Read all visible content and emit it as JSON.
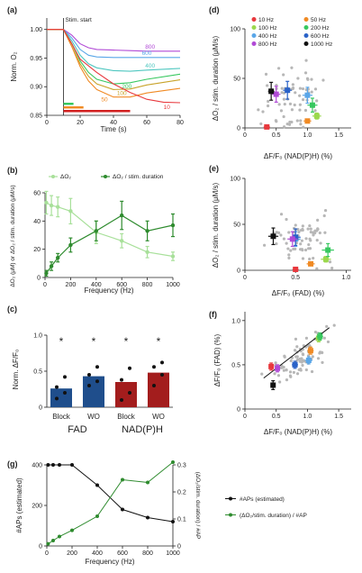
{
  "panels": [
    {
      "id": "a",
      "label": "(a)"
    },
    {
      "id": "b",
      "label": "(b)"
    },
    {
      "id": "c",
      "label": "(c)"
    },
    {
      "id": "d",
      "label": "(d)"
    },
    {
      "id": "e",
      "label": "(e)"
    },
    {
      "id": "f",
      "label": "(f)"
    },
    {
      "id": "g",
      "label": "(g)"
    }
  ],
  "colors": {
    "f10": "#e8383d",
    "f50": "#f08a24",
    "f100": "#9bd84d",
    "f200": "#37c85f",
    "f400": "#5aa6e8",
    "f600": "#2a62c8",
    "f800": "#b14ad6",
    "f1000": "#111111",
    "grey": "#b7b7b7",
    "greenDark": "#2e8b2e",
    "greenLight": "#a8e09a",
    "navy": "#1f4e8c",
    "darkred": "#a31d1d",
    "stimRed": "#d21f1f"
  },
  "chart_data": [
    {
      "panel": "a",
      "type": "line",
      "ylabel": "Norm. O₂",
      "xlabel": "Time (s)",
      "xlim": [
        0,
        80
      ],
      "ylim": [
        0.85,
        1.02
      ],
      "xticks": [
        "0",
        "20",
        "40",
        "60",
        "80"
      ],
      "yticks": [
        "0.85",
        "0.90",
        "0.95",
        "1.00"
      ],
      "annotation": "Stim. start",
      "stim_start": 10,
      "series": [
        {
          "name": "800",
          "color": "#b14ad6",
          "points": [
            [
              0,
              1.0
            ],
            [
              10,
              1.0
            ],
            [
              15,
              0.99
            ],
            [
              20,
              0.975
            ],
            [
              25,
              0.968
            ],
            [
              30,
              0.965
            ],
            [
              40,
              0.964
            ],
            [
              50,
              0.963
            ],
            [
              60,
              0.962
            ],
            [
              80,
              0.962
            ]
          ]
        },
        {
          "name": "600",
          "color": "#5aa6e8",
          "points": [
            [
              0,
              1.0
            ],
            [
              10,
              1.0
            ],
            [
              15,
              0.985
            ],
            [
              20,
              0.965
            ],
            [
              25,
              0.955
            ],
            [
              30,
              0.952
            ],
            [
              40,
              0.951
            ],
            [
              50,
              0.951
            ],
            [
              60,
              0.951
            ],
            [
              80,
              0.951
            ]
          ]
        },
        {
          "name": "400",
          "color": "#4fc7c0",
          "points": [
            [
              0,
              1.0
            ],
            [
              10,
              1.0
            ],
            [
              15,
              0.98
            ],
            [
              20,
              0.955
            ],
            [
              25,
              0.94
            ],
            [
              30,
              0.933
            ],
            [
              40,
              0.928
            ],
            [
              50,
              0.927
            ],
            [
              60,
              0.929
            ],
            [
              80,
              0.932
            ]
          ]
        },
        {
          "name": "200",
          "color": "#37c85f",
          "points": [
            [
              0,
              1.0
            ],
            [
              10,
              1.0
            ],
            [
              15,
              0.975
            ],
            [
              20,
              0.945
            ],
            [
              25,
              0.925
            ],
            [
              30,
              0.913
            ],
            [
              40,
              0.905
            ],
            [
              50,
              0.907
            ],
            [
              60,
              0.913
            ],
            [
              80,
              0.922
            ]
          ]
        },
        {
          "name": "100",
          "color": "#c8a32a",
          "points": [
            [
              0,
              1.0
            ],
            [
              10,
              1.0
            ],
            [
              15,
              0.97
            ],
            [
              20,
              0.94
            ],
            [
              25,
              0.918
            ],
            [
              30,
              0.905
            ],
            [
              40,
              0.895
            ],
            [
              50,
              0.896
            ],
            [
              60,
              0.903
            ],
            [
              80,
              0.912
            ]
          ]
        },
        {
          "name": "50",
          "color": "#f08a24",
          "points": [
            [
              0,
              1.0
            ],
            [
              10,
              1.0
            ],
            [
              15,
              0.97
            ],
            [
              20,
              0.935
            ],
            [
              25,
              0.91
            ],
            [
              30,
              0.895
            ],
            [
              40,
              0.882
            ],
            [
              50,
              0.882
            ],
            [
              60,
              0.889
            ],
            [
              80,
              0.897
            ]
          ]
        },
        {
          "name": "10",
          "color": "#e8383d",
          "points": [
            [
              0,
              1.0
            ],
            [
              10,
              1.0
            ],
            [
              15,
              0.975
            ],
            [
              20,
              0.948
            ],
            [
              30,
              0.925
            ],
            [
              40,
              0.905
            ],
            [
              50,
              0.89
            ],
            [
              60,
              0.878
            ],
            [
              70,
              0.873
            ],
            [
              80,
              0.872
            ]
          ]
        }
      ],
      "stim_bars": [
        {
          "color": "#37c85f",
          "start": 10,
          "end": 16
        },
        {
          "color": "#f08a24",
          "start": 10,
          "end": 22
        },
        {
          "color": "#d21f1f",
          "start": 10,
          "end": 50
        }
      ]
    },
    {
      "panel": "b",
      "type": "line",
      "xlabel": "Frequency (Hz)",
      "ylabel": "ΔO₂ (μM) or ΔO₂ / stim. duration (μM/s)",
      "xlim": [
        0,
        1000
      ],
      "ylim": [
        0,
        60
      ],
      "xticks": [
        "0",
        "200",
        "400",
        "600",
        "800",
        "1000"
      ],
      "yticks": [
        "0",
        "20",
        "40",
        "60"
      ],
      "series": [
        {
          "name": "ΔO₂",
          "color": "#a8e09a",
          "x": [
            10,
            50,
            100,
            200,
            400,
            600,
            800,
            1000
          ],
          "y": [
            53,
            51,
            50,
            47,
            32,
            26,
            18,
            15
          ],
          "err": [
            8,
            7,
            7,
            9,
            8,
            5,
            4,
            3
          ]
        },
        {
          "name": "ΔO₂ / stim. duration",
          "color": "#2e8b2e",
          "x": [
            10,
            50,
            100,
            200,
            400,
            600,
            800,
            1000
          ],
          "y": [
            3,
            8,
            14,
            23,
            33,
            44,
            33,
            37
          ],
          "err": [
            2,
            3,
            3,
            5,
            7,
            10,
            7,
            8
          ]
        }
      ]
    },
    {
      "panel": "c",
      "type": "bar",
      "ylabel": "Norm. ΔF/F₀",
      "ylim": [
        0,
        1.0
      ],
      "yticks": [
        "0",
        "0.5",
        "1.0"
      ],
      "categories": [
        "Block",
        "WO",
        "Block",
        "WO"
      ],
      "groups": [
        "FAD",
        "NAD(P)H"
      ],
      "values": [
        0.26,
        0.43,
        0.35,
        0.48
      ],
      "colors": [
        "#1f4e8c",
        "#1f4e8c",
        "#a31d1d",
        "#a31d1d"
      ],
      "points": [
        [
          0.12,
          0.2,
          0.28,
          0.42
        ],
        [
          0.3,
          0.36,
          0.45,
          0.56
        ],
        [
          0.1,
          0.2,
          0.38,
          0.54
        ],
        [
          0.3,
          0.45,
          0.56,
          0.62
        ]
      ],
      "sig": [
        "*",
        "*",
        "*",
        "*"
      ]
    },
    {
      "panel": "d",
      "type": "scatter",
      "xlabel": "ΔF/F₀ (NAD(P)H) (%)",
      "ylabel": "ΔO₂ / stim. duration (μM/s)",
      "xlim": [
        0,
        1.7
      ],
      "ylim": [
        0,
        100
      ],
      "xticks": [
        "0",
        "0.5",
        "1.0",
        "1.5"
      ],
      "yticks": [
        "0",
        "50",
        "100"
      ],
      "legend": [
        "10 Hz",
        "50 Hz",
        "100 Hz",
        "200 Hz",
        "400 Hz",
        "600 Hz",
        "800 Hz",
        "1000 Hz"
      ],
      "means": [
        {
          "f": "10 Hz",
          "x": 0.35,
          "y": 1,
          "ex": 0.05,
          "ey": 1
        },
        {
          "f": "50 Hz",
          "x": 1.0,
          "y": 7,
          "ex": 0.06,
          "ey": 2
        },
        {
          "f": "100 Hz",
          "x": 1.15,
          "y": 12,
          "ex": 0.07,
          "ey": 3
        },
        {
          "f": "200 Hz",
          "x": 1.08,
          "y": 23,
          "ex": 0.08,
          "ey": 7
        },
        {
          "f": "400 Hz",
          "x": 1.0,
          "y": 33,
          "ex": 0.08,
          "ey": 8
        },
        {
          "f": "600 Hz",
          "x": 0.68,
          "y": 38,
          "ex": 0.07,
          "ey": 9
        },
        {
          "f": "800 Hz",
          "x": 0.5,
          "y": 34,
          "ex": 0.07,
          "ey": 8
        },
        {
          "f": "1000 Hz",
          "x": 0.42,
          "y": 37,
          "ex": 0.05,
          "ey": 9
        }
      ]
    },
    {
      "panel": "e",
      "type": "scatter",
      "xlabel": "ΔF/F₀ (FAD) (%)",
      "ylabel": "ΔO₂ / stim. duration (μM/s)",
      "xlim": [
        0,
        1.05
      ],
      "ylim": [
        0,
        100
      ],
      "xticks": [
        "0",
        "0.5",
        "1.0"
      ],
      "yticks": [
        "0",
        "50",
        "100"
      ],
      "means": [
        {
          "f": "10 Hz",
          "x": 0.5,
          "y": 1,
          "ex": 0.03,
          "ey": 1
        },
        {
          "f": "50 Hz",
          "x": 0.65,
          "y": 7,
          "ex": 0.04,
          "ey": 2
        },
        {
          "f": "100 Hz",
          "x": 0.8,
          "y": 12,
          "ex": 0.05,
          "ey": 3
        },
        {
          "f": "200 Hz",
          "x": 0.82,
          "y": 22,
          "ex": 0.06,
          "ey": 7
        },
        {
          "f": "400 Hz",
          "x": 0.5,
          "y": 34,
          "ex": 0.05,
          "ey": 8
        },
        {
          "f": "600 Hz",
          "x": 0.5,
          "y": 36,
          "ex": 0.05,
          "ey": 9
        },
        {
          "f": "800 Hz",
          "x": 0.47,
          "y": 34,
          "ex": 0.05,
          "ey": 8
        },
        {
          "f": "1000 Hz",
          "x": 0.28,
          "y": 37,
          "ex": 0.05,
          "ey": 9
        }
      ]
    },
    {
      "panel": "f",
      "type": "scatter",
      "xlabel": "ΔF/F₀ (NAD(P)H) (%)",
      "ylabel": "ΔF/F₀ (FAD) (%)",
      "xlim": [
        0,
        1.7
      ],
      "ylim": [
        0,
        1.1
      ],
      "xticks": [
        "0",
        "0.5",
        "1.0",
        "1.5"
      ],
      "yticks": [
        "0",
        "0.5",
        "1.0"
      ],
      "fit_line": [
        [
          0.3,
          0.35
        ],
        [
          1.35,
          0.92
        ]
      ],
      "means": [
        {
          "f": "10 Hz",
          "x": 0.42,
          "y": 0.48,
          "ex": 0.04,
          "ey": 0.04
        },
        {
          "f": "50 Hz",
          "x": 1.05,
          "y": 0.66,
          "ex": 0.05,
          "ey": 0.04
        },
        {
          "f": "100 Hz",
          "x": 1.18,
          "y": 0.8,
          "ex": 0.05,
          "ey": 0.04
        },
        {
          "f": "200 Hz",
          "x": 1.2,
          "y": 0.82,
          "ex": 0.05,
          "ey": 0.04
        },
        {
          "f": "400 Hz",
          "x": 1.02,
          "y": 0.55,
          "ex": 0.06,
          "ey": 0.04
        },
        {
          "f": "600 Hz",
          "x": 0.8,
          "y": 0.5,
          "ex": 0.05,
          "ey": 0.04
        },
        {
          "f": "800 Hz",
          "x": 0.52,
          "y": 0.46,
          "ex": 0.04,
          "ey": 0.04
        },
        {
          "f": "1000 Hz",
          "x": 0.45,
          "y": 0.27,
          "ex": 0.04,
          "ey": 0.05
        }
      ]
    },
    {
      "panel": "g",
      "type": "line",
      "xlabel": "Frequency (Hz)",
      "ylabel": "#APs (estimated)",
      "ylabel_right": "(ΔO₂/stim. duration) / #AP",
      "xlim": [
        0,
        1000
      ],
      "ylim": [
        0,
        400
      ],
      "ylim_right": [
        0,
        0.3
      ],
      "xticks": [
        "0",
        "200",
        "400",
        "600",
        "800",
        "1000"
      ],
      "yticks": [
        "0",
        "200",
        "400"
      ],
      "yticks_right": [
        "0",
        "0.1",
        "0.2",
        "0.3"
      ],
      "series": [
        {
          "name": "#APs (estimated)",
          "color": "#111111",
          "axis": "left",
          "x": [
            10,
            50,
            100,
            200,
            400,
            600,
            800,
            1000
          ],
          "y": [
            400,
            400,
            400,
            400,
            300,
            180,
            140,
            120
          ]
        },
        {
          "name": "(ΔO₂/stim. duration) / #AP",
          "color": "#2e8b2e",
          "axis": "right",
          "x": [
            10,
            50,
            100,
            200,
            400,
            600,
            800,
            1000
          ],
          "y": [
            0.008,
            0.02,
            0.035,
            0.058,
            0.11,
            0.245,
            0.235,
            0.31
          ]
        }
      ]
    }
  ]
}
